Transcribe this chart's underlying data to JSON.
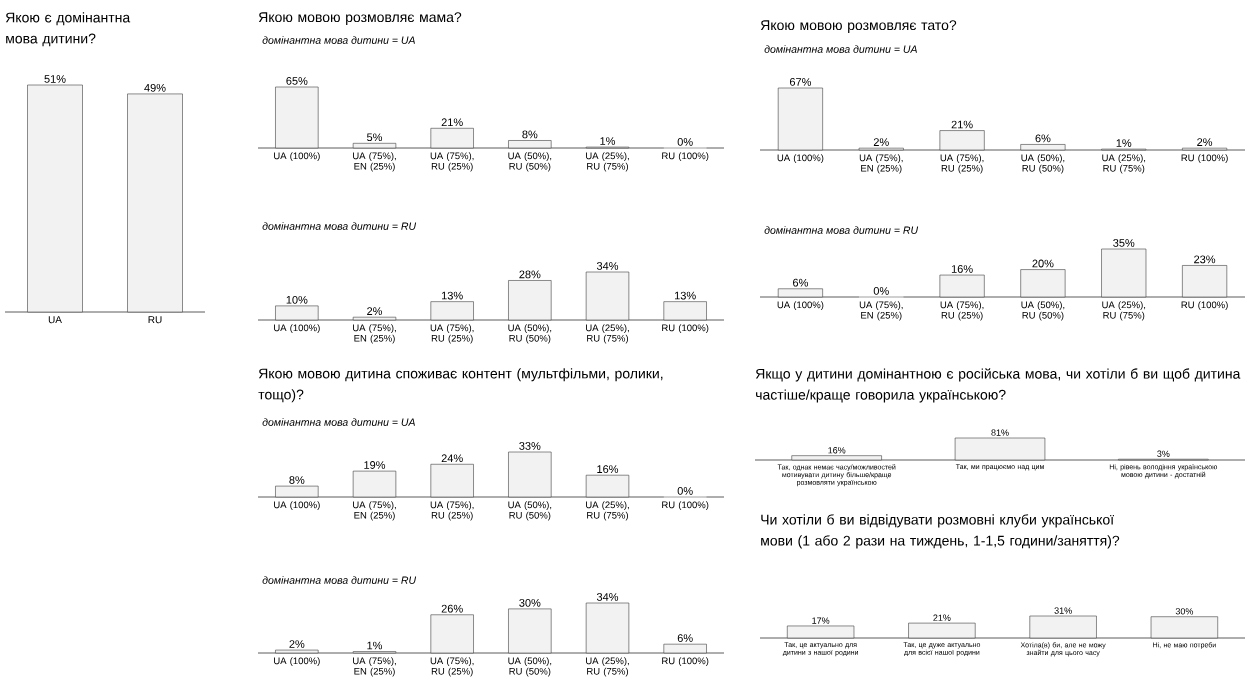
{
  "chart_data": [
    {
      "type": "bar",
      "title": "Якою є домінантна мова дитини?",
      "categories": [
        "UA",
        "RU"
      ],
      "values": [
        51,
        49
      ],
      "value_labels": [
        "51%",
        "49%"
      ],
      "color": "#f2f2f2"
    },
    {
      "type": "bar",
      "title": "Якою мовою розмовляє мама?",
      "subtitle": "домінантна мова дитини = UA",
      "categories": [
        "UA (100%)",
        "UA (75%), EN (25%)",
        "UA (75%), RU (25%)",
        "UA (50%), RU (50%)",
        "UA (25%), RU (75%)",
        "RU (100%)"
      ],
      "values": [
        65,
        5,
        21,
        8,
        1,
        0
      ],
      "value_labels": [
        "65%",
        "5%",
        "21%",
        "8%",
        "1%",
        "0%"
      ],
      "color": "#f2f2f2"
    },
    {
      "type": "bar",
      "subtitle": "домінантна мова дитини = RU",
      "categories": [
        "UA (100%)",
        "UA (75%), EN (25%)",
        "UA (75%), RU (25%)",
        "UA (50%), RU (50%)",
        "UA (25%), RU (75%)",
        "RU (100%)"
      ],
      "values": [
        10,
        2,
        13,
        28,
        34,
        13
      ],
      "value_labels": [
        "10%",
        "2%",
        "13%",
        "28%",
        "34%",
        "13%"
      ],
      "color": "#f2f2f2"
    },
    {
      "type": "bar",
      "title": "Якою мовою розмовляє тато?",
      "subtitle": "домінантна мова дитини = UA",
      "categories": [
        "UA (100%)",
        "UA (75%), EN (25%)",
        "UA (75%), RU (25%)",
        "UA (50%), RU (50%)",
        "UA (25%), RU (75%)",
        "RU (100%)"
      ],
      "values": [
        67,
        2,
        21,
        6,
        1,
        2
      ],
      "value_labels": [
        "67%",
        "2%",
        "21%",
        "6%",
        "1%",
        "2%"
      ],
      "color": "#f2f2f2"
    },
    {
      "type": "bar",
      "subtitle": "домінантна мова дитини = RU",
      "categories": [
        "UA (100%)",
        "UA (75%), EN (25%)",
        "UA (75%), RU (25%)",
        "UA (50%), RU (50%)",
        "UA (25%), RU (75%)",
        "RU (100%)"
      ],
      "values": [
        6,
        0,
        16,
        20,
        35,
        23
      ],
      "value_labels": [
        "6%",
        "0%",
        "16%",
        "20%",
        "35%",
        "23%"
      ],
      "color": "#f2f2f2"
    },
    {
      "type": "bar",
      "title": "Якою мовою дитина споживає контент (мультфільми, ролики, тощо)?",
      "subtitle": "домінантна мова дитини = UA",
      "categories": [
        "UA (100%)",
        "UA (75%), EN (25%)",
        "UA (75%), RU (25%)",
        "UA (50%), RU (50%)",
        "UA (25%), RU (75%)",
        "RU (100%)"
      ],
      "values": [
        8,
        19,
        24,
        33,
        16,
        0
      ],
      "value_labels": [
        "8%",
        "19%",
        "24%",
        "33%",
        "16%",
        "0%"
      ],
      "color": "#f2f2f2"
    },
    {
      "type": "bar",
      "subtitle": "домінантна мова дитини = RU",
      "categories": [
        "UA (100%)",
        "UA (75%), EN (25%)",
        "UA (75%), RU (25%)",
        "UA (50%), RU (50%)",
        "UA (25%), RU (75%)",
        "RU (100%)"
      ],
      "values": [
        2,
        1,
        26,
        30,
        34,
        6
      ],
      "value_labels": [
        "2%",
        "1%",
        "26%",
        "30%",
        "34%",
        "6%"
      ],
      "color": "#f2f2f2"
    },
    {
      "type": "bar",
      "title": "Якщо у дитини домінантною є російська мова, чи хотіли б ви щоб дитина частіше/краще говорила українською?",
      "categories": [
        "Так, однак немає часу/можливостей мотивувати дитину більше/краще розмовляти українською",
        "Так, ми працюємо над цим",
        "Ні, рівень володіння українською мовою дитини - достатній"
      ],
      "values": [
        16,
        81,
        3
      ],
      "value_labels": [
        "16%",
        "81%",
        "3%"
      ],
      "color": "#f2f2f2"
    },
    {
      "type": "bar",
      "title": "Чи хотіли б ви відвідувати розмовні клуби української мови (1 або 2 рази на тиждень, 1-1,5 години/заняття)?",
      "categories": [
        "Так, це актуально для дитини з нашої родини",
        "Так, це дуже актуально для всієї нашої родини",
        "Хотіла(в) би, але не можу знайти для цього часу",
        "Ні, не маю потреби"
      ],
      "values": [
        17,
        21,
        31,
        30
      ],
      "value_labels": [
        "17%",
        "21%",
        "31%",
        "30%"
      ],
      "color": "#f2f2f2"
    }
  ]
}
